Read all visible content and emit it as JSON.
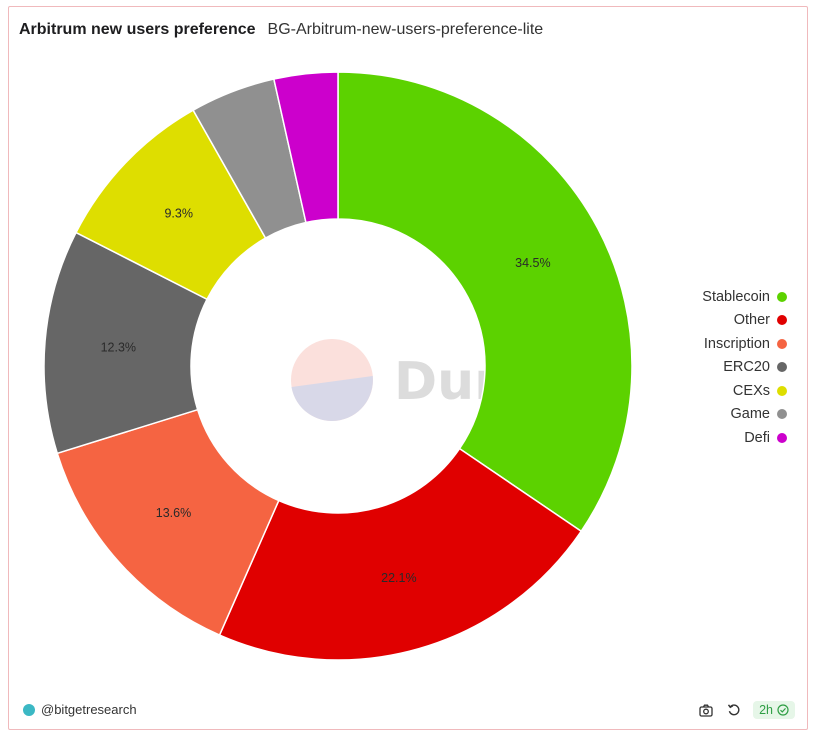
{
  "header": {
    "title": "Arbitrum new users preference",
    "subtitle": "BG-Arbitrum-new-users-preference-lite"
  },
  "watermark": {
    "text": "Dune"
  },
  "footer": {
    "author": "@bitgetresearch",
    "refresh_badge": "2h",
    "icons": [
      "camera-icon",
      "refresh-icon",
      "check-circle-icon"
    ]
  },
  "chart_data": {
    "type": "pie",
    "donut": true,
    "legend_placement": "right",
    "slices": [
      {
        "name": "Stablecoin",
        "value": 34.5,
        "label": "34.5%",
        "color": "#5cd200"
      },
      {
        "name": "Other",
        "value": 22.1,
        "label": "22.1%",
        "color": "#e00000"
      },
      {
        "name": "Inscription",
        "value": 13.6,
        "label": "13.6%",
        "color": "#f56442"
      },
      {
        "name": "ERC20",
        "value": 12.3,
        "label": "12.3%",
        "color": "#666666"
      },
      {
        "name": "CEXs",
        "value": 9.3,
        "label": "9.3%",
        "color": "#dede00"
      },
      {
        "name": "Game",
        "value": 4.7,
        "label": "",
        "color": "#909090"
      },
      {
        "name": "Defi",
        "value": 3.5,
        "label": "",
        "color": "#cc00cc"
      }
    ]
  }
}
